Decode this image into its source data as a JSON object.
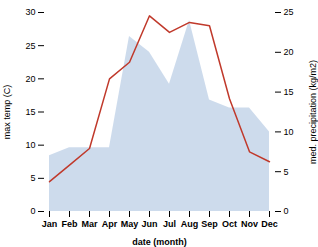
{
  "chart_data": {
    "type": "line",
    "categories": [
      "Jan",
      "Feb",
      "Mar",
      "Apr",
      "May",
      "Jun",
      "Jul",
      "Aug",
      "Sep",
      "Oct",
      "Nov",
      "Dec"
    ],
    "xlabel": "date (month)",
    "ylabel": "max temp (C)",
    "y2label": "med. precipitation (kg/m2)",
    "series": [
      {
        "type": "area",
        "axis": "y2",
        "color": "#b8cce4",
        "values": [
          7.0,
          8.0,
          8.0,
          8.0,
          22.0,
          20.0,
          16.0,
          24.0,
          14.0,
          13.0,
          13.0,
          10.0
        ]
      },
      {
        "type": "line",
        "color": "#c0392b",
        "values": [
          4.5,
          7.0,
          9.5,
          20.0,
          22.5,
          29.5,
          27.0,
          28.5,
          28.0,
          17.0,
          9.0,
          7.5
        ]
      }
    ],
    "ylim": [
      0,
      30
    ],
    "yticks": [
      0,
      5,
      10,
      15,
      20,
      25,
      30
    ],
    "y2lim": [
      0,
      25
    ],
    "y2ticks": [
      0,
      5,
      10,
      15,
      20,
      25
    ],
    "grid": false
  }
}
